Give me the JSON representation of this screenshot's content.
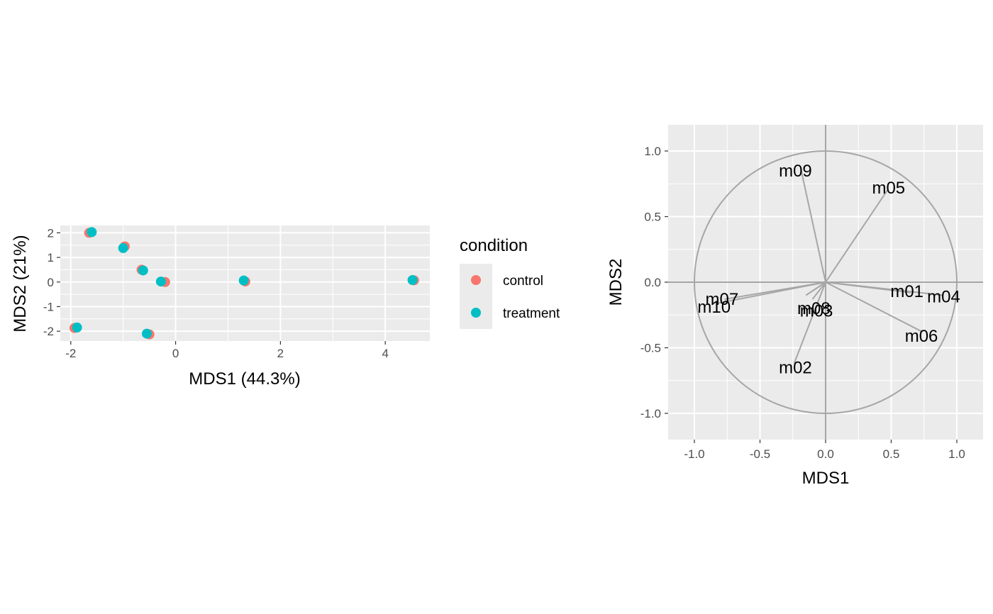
{
  "chart_data": [
    {
      "type": "scatter",
      "xlabel": "MDS1 (44.3%)",
      "ylabel": "MDS2 (21%)",
      "xlim": [
        -2.2,
        4.85
      ],
      "ylim": [
        -2.4,
        2.3
      ],
      "xticks": [
        -2,
        0,
        2,
        4
      ],
      "yticks": [
        -2,
        -1,
        0,
        1,
        2
      ],
      "grid": true,
      "legend": {
        "title": "condition",
        "placement": "right",
        "entries": [
          "control",
          "treatment"
        ]
      },
      "series": [
        {
          "name": "control",
          "color": "#F8766D",
          "points": [
            {
              "x": -1.65,
              "y": 2.0
            },
            {
              "x": -0.97,
              "y": 1.45
            },
            {
              "x": -0.65,
              "y": 0.5
            },
            {
              "x": -0.2,
              "y": 0.0
            },
            {
              "x": 1.33,
              "y": 0.02
            },
            {
              "x": 4.55,
              "y": 0.07
            },
            {
              "x": -1.93,
              "y": -1.87
            },
            {
              "x": -0.5,
              "y": -2.13
            }
          ]
        },
        {
          "name": "treatment",
          "color": "#00BFC4",
          "points": [
            {
              "x": -1.6,
              "y": 2.03
            },
            {
              "x": -1.0,
              "y": 1.38
            },
            {
              "x": -0.62,
              "y": 0.47
            },
            {
              "x": -0.28,
              "y": 0.02
            },
            {
              "x": 1.3,
              "y": 0.06
            },
            {
              "x": 4.52,
              "y": 0.08
            },
            {
              "x": -1.88,
              "y": -1.85
            },
            {
              "x": -0.55,
              "y": -2.1
            }
          ]
        }
      ]
    },
    {
      "type": "correlation-circle",
      "xlabel": "MDS1",
      "ylabel": "MDS2",
      "xlim": [
        -1.2,
        1.2
      ],
      "ylim": [
        -1.2,
        1.2
      ],
      "xticks": [
        -1.0,
        -0.5,
        0.0,
        0.5,
        1.0
      ],
      "yticks": [
        -1.0,
        -0.5,
        0.0,
        0.5,
        1.0
      ],
      "grid": true,
      "line_color": "#a6a6a6",
      "variables": [
        {
          "label": "m09",
          "x": -0.19,
          "y": 0.87,
          "lx": -0.23,
          "ly": 0.85
        },
        {
          "label": "m05",
          "x": 0.47,
          "y": 0.7,
          "lx": 0.48,
          "ly": 0.72
        },
        {
          "label": "m01",
          "x": 0.65,
          "y": -0.08,
          "lx": 0.62,
          "ly": -0.07
        },
        {
          "label": "m04",
          "x": 0.9,
          "y": -0.1,
          "lx": 0.9,
          "ly": -0.11
        },
        {
          "label": "m07",
          "x": -0.77,
          "y": -0.13,
          "lx": -0.79,
          "ly": -0.13
        },
        {
          "label": "m10",
          "x": -0.82,
          "y": -0.16,
          "lx": -0.85,
          "ly": -0.19
        },
        {
          "label": "m08",
          "x": -0.15,
          "y": -0.1,
          "lx": -0.09,
          "ly": -0.2
        },
        {
          "label": "m03",
          "x": -0.1,
          "y": -0.13,
          "lx": -0.07,
          "ly": -0.22
        },
        {
          "label": "m06",
          "x": 0.74,
          "y": -0.38,
          "lx": 0.73,
          "ly": -0.41
        },
        {
          "label": "m02",
          "x": -0.24,
          "y": -0.62,
          "lx": -0.23,
          "ly": -0.65
        }
      ]
    }
  ]
}
